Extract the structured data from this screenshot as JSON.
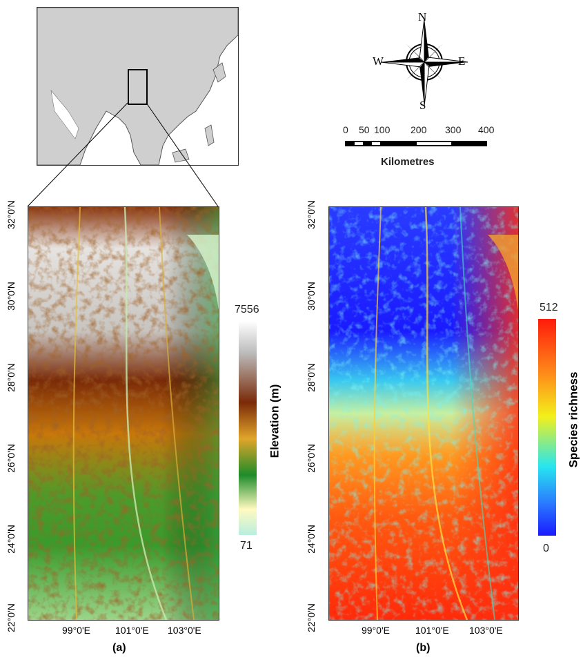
{
  "inset": {
    "name": "locator-map-asia"
  },
  "compass": {
    "n": "N",
    "s": "S",
    "e": "E",
    "w": "W"
  },
  "scalebar": {
    "ticks": [
      "0",
      "50",
      "100",
      "200",
      "300",
      "400"
    ],
    "unit": "Kilometres"
  },
  "panel_a": {
    "caption": "(a)",
    "legend_title": "Elevation (m)",
    "legend_max": "7556",
    "legend_min": "71",
    "lat_ticks": [
      "32°0'N",
      "30°0'N",
      "28°0'N",
      "26°0'N",
      "24°0'N",
      "22°0'N"
    ],
    "lon_ticks": [
      "99°0'E",
      "101°0'E",
      "103°0'E"
    ],
    "colors": {
      "low": "#b8eee0",
      "mid1": "#1e8c2a",
      "mid2": "#e0a52a",
      "mid3": "#7a1d05",
      "high": "#ffffff"
    }
  },
  "panel_b": {
    "caption": "(b)",
    "legend_title": "Species richness",
    "legend_max": "512",
    "legend_min": "0",
    "lat_ticks": [
      "32°0'N",
      "30°0'N",
      "28°0'N",
      "26°0'N",
      "24°0'N",
      "22°0'N"
    ],
    "lon_ticks": [
      "99°0'E",
      "101°0'E",
      "103°0'E"
    ],
    "colors": {
      "low": "#1a1aff",
      "mid1": "#27e6ef",
      "mid2": "#f3f01b",
      "mid3": "#ff8a1a",
      "high": "#ff1b0a"
    }
  }
}
